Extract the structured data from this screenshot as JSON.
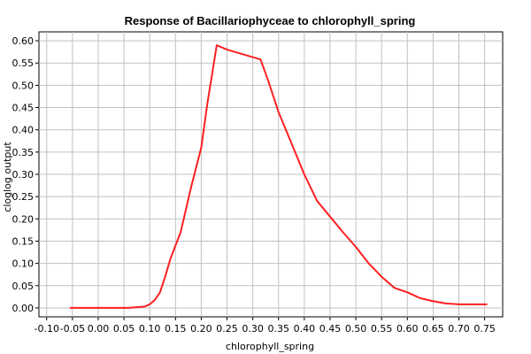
{
  "chart_data": {
    "type": "line",
    "title": "Response of Bacillariophyceae to chlorophyll_spring",
    "xlabel": "chlorophyll_spring",
    "ylabel": "cloglog output",
    "xlim": [
      -0.115,
      0.785
    ],
    "ylim": [
      -0.02,
      0.62
    ],
    "x_ticks": [
      "-0.10",
      "-0.05",
      "0.00",
      "0.05",
      "0.10",
      "0.15",
      "0.20",
      "0.25",
      "0.30",
      "0.35",
      "0.40",
      "0.45",
      "0.50",
      "0.55",
      "0.60",
      "0.65",
      "0.70",
      "0.75"
    ],
    "y_ticks": [
      "0.00",
      "0.05",
      "0.10",
      "0.15",
      "0.20",
      "0.25",
      "0.30",
      "0.35",
      "0.40",
      "0.45",
      "0.50",
      "0.55",
      "0.60"
    ],
    "grid": true,
    "colors": {
      "series": "#ff2020",
      "grid": "#c0c0c0",
      "axis": "#000000"
    },
    "series": [
      {
        "x": [
          -0.055,
          0.0,
          0.06,
          0.09,
          0.1,
          0.11,
          0.12,
          0.13,
          0.14,
          0.16,
          0.18,
          0.2,
          0.212,
          0.23,
          0.25,
          0.28,
          0.315,
          0.33,
          0.35,
          0.375,
          0.4,
          0.425,
          0.45,
          0.475,
          0.5,
          0.525,
          0.55,
          0.575,
          0.6,
          0.625,
          0.65,
          0.675,
          0.7,
          0.725,
          0.755
        ],
        "y": [
          0.0,
          0.0,
          0.0,
          0.003,
          0.008,
          0.018,
          0.035,
          0.07,
          0.11,
          0.17,
          0.27,
          0.36,
          0.46,
          0.59,
          0.58,
          0.57,
          0.558,
          0.51,
          0.44,
          0.37,
          0.3,
          0.24,
          0.205,
          0.17,
          0.137,
          0.1,
          0.07,
          0.045,
          0.035,
          0.022,
          0.015,
          0.01,
          0.008,
          0.008,
          0.008
        ]
      }
    ]
  }
}
